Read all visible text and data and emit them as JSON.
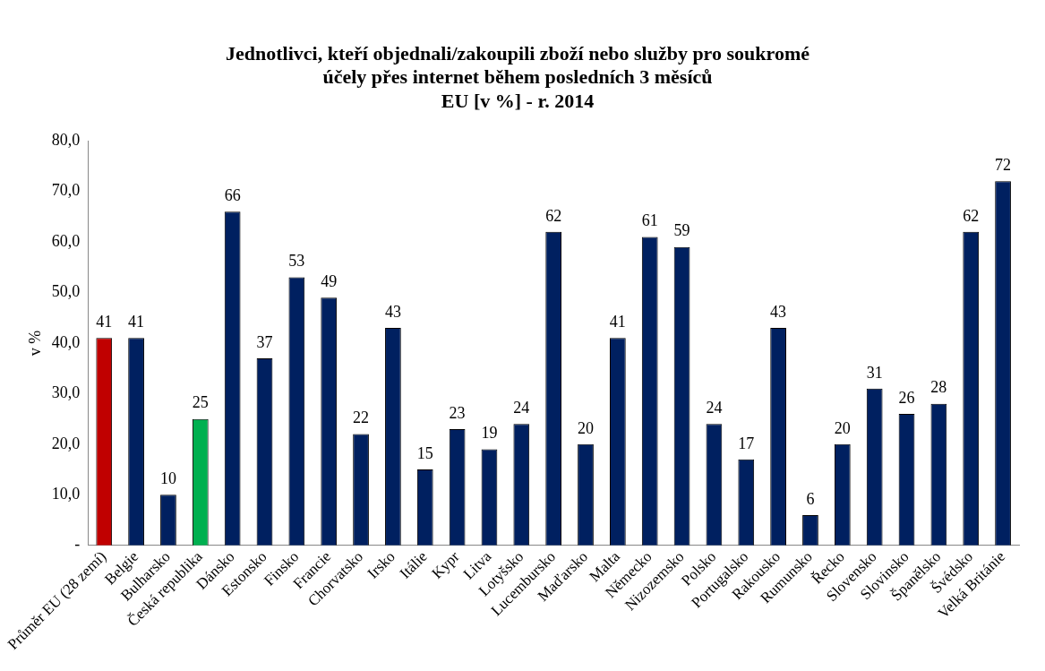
{
  "chart_data": {
    "type": "bar",
    "title": "Jednotlivci, kteří objednali/zakoupili zboží nebo služby pro soukromé\núčely přes internet během posledních 3 měsíců\nEU [v %] - r. 2014",
    "ylabel": "v %",
    "categories": [
      "Průměr EU (28 zemí)",
      "Belgie",
      "Bulharsko",
      "Česká republika",
      "Dánsko",
      "Estonsko",
      "Finsko",
      "Francie",
      "Chorvatsko",
      "Irsko",
      "Itálie",
      "Kypr",
      "Litva",
      "Lotyšsko",
      "Lucembursko",
      "Maďarsko",
      "Malta",
      "Německo",
      "Nizozemsko",
      "Polsko",
      "Portugalsko",
      "Rakousko",
      "Rumunsko",
      "Řecko",
      "Slovensko",
      "Slovinsko",
      "Španělsko",
      "Švédsko",
      "Velká Británie"
    ],
    "values": [
      41,
      41,
      10,
      25,
      66,
      37,
      53,
      49,
      22,
      43,
      15,
      23,
      19,
      24,
      62,
      20,
      41,
      61,
      59,
      24,
      17,
      43,
      6,
      20,
      31,
      26,
      28,
      62,
      72
    ],
    "colors": [
      "#c00000",
      "#002060",
      "#002060",
      "#00b050",
      "#002060",
      "#002060",
      "#002060",
      "#002060",
      "#002060",
      "#002060",
      "#002060",
      "#002060",
      "#002060",
      "#002060",
      "#002060",
      "#002060",
      "#002060",
      "#002060",
      "#002060",
      "#002060",
      "#002060",
      "#002060",
      "#002060",
      "#002060",
      "#002060",
      "#002060",
      "#002060",
      "#002060",
      "#002060"
    ],
    "ylim": [
      0,
      80
    ],
    "yticks": [
      {
        "value": 0,
        "label": "-"
      },
      {
        "value": 10,
        "label": "10,0"
      },
      {
        "value": 20,
        "label": "20,0"
      },
      {
        "value": 30,
        "label": "30,0"
      },
      {
        "value": 40,
        "label": "40,0"
      },
      {
        "value": 50,
        "label": "50,0"
      },
      {
        "value": 60,
        "label": "60,0"
      },
      {
        "value": 70,
        "label": "70,0"
      },
      {
        "value": 80,
        "label": "80,0"
      }
    ],
    "data_labels": true,
    "grid": false,
    "legend": false
  }
}
